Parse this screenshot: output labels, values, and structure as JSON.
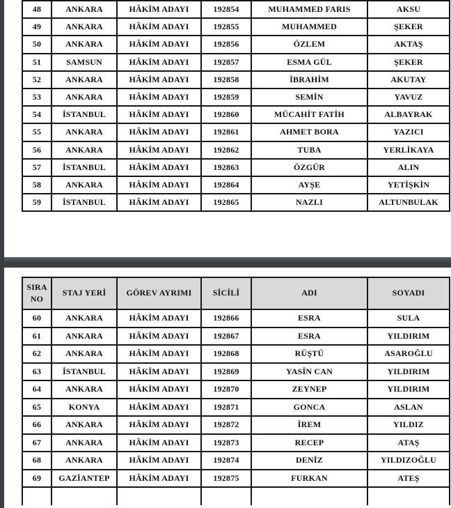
{
  "colors": {
    "page_bg": "#ffffff",
    "separator_dark": "#3a3e41",
    "separator_light": "#5a5f64",
    "header_bg": "#d9d9d9",
    "border": "#161616",
    "text": "#111111"
  },
  "column_keys": [
    "sira-no",
    "staj-yeri",
    "gorev-ayrimi",
    "sicili",
    "adi",
    "soyadi"
  ],
  "table_bottom_headers": [
    "SIRA NO",
    "STAJ YERİ",
    "GÖREV AYRIMI",
    "SİCİLİ",
    "ADI",
    "SOYADI"
  ],
  "table_top_rows": [
    [
      "48",
      "ANKARA",
      "HÂKİM ADAYI",
      "192854",
      "MUHAMMED FARIS",
      "AKSU"
    ],
    [
      "49",
      "ANKARA",
      "HÂKİM ADAYI",
      "192855",
      "MUHAMMED",
      "ŞEKER"
    ],
    [
      "50",
      "ANKARA",
      "HÂKİM ADAYI",
      "192856",
      "ÖZLEM",
      "AKTAŞ"
    ],
    [
      "51",
      "SAMSUN",
      "HÂKİM ADAYI",
      "192857",
      "ESMA GÜL",
      "ŞEKER"
    ],
    [
      "52",
      "ANKARA",
      "HÂKİM ADAYI",
      "192858",
      "İBRAHİM",
      "AKUTAY"
    ],
    [
      "53",
      "ANKARA",
      "HÂKİM ADAYI",
      "192859",
      "SEMİN",
      "YAVUZ"
    ],
    [
      "54",
      "İSTANBUL",
      "HÂKİM ADAYI",
      "192860",
      "MÜCAHİT FATİH",
      "ALBAYRAK"
    ],
    [
      "55",
      "ANKARA",
      "HÂKİM ADAYI",
      "192861",
      "AHMET BORA",
      "YAZICI"
    ],
    [
      "56",
      "ANKARA",
      "HÂKİM ADAYI",
      "192862",
      "TUBA",
      "YERLİKAYA"
    ],
    [
      "57",
      "İSTANBUL",
      "HÂKİM ADAYI",
      "192863",
      "ÖZGÜR",
      "ALIN"
    ],
    [
      "58",
      "ANKARA",
      "HÂKİM ADAYI",
      "192864",
      "AYŞE",
      "YETİŞKİN"
    ],
    [
      "59",
      "İSTANBUL",
      "HÂKİM ADAYI",
      "192865",
      "NAZLI",
      "ALTUNBULAK"
    ]
  ],
  "table_bottom_rows": [
    [
      "60",
      "ANKARA",
      "HÂKİM ADAYI",
      "192866",
      "ESRA",
      "SULA"
    ],
    [
      "61",
      "ANKARA",
      "HÂKİM ADAYI",
      "192867",
      "ESRA",
      "YILDIRIM"
    ],
    [
      "62",
      "ANKARA",
      "HÂKİM ADAYI",
      "192868",
      "RÜŞTÜ",
      "ASAROĞLU"
    ],
    [
      "63",
      "İSTANBUL",
      "HÂKİM ADAYI",
      "192869",
      "YASİN CAN",
      "YILDIRIM"
    ],
    [
      "64",
      "ANKARA",
      "HÂKİM ADAYI",
      "192870",
      "ZEYNEP",
      "YILDIRIM"
    ],
    [
      "65",
      "KONYA",
      "HÂKİM ADAYI",
      "192871",
      "GONCA",
      "ASLAN"
    ],
    [
      "66",
      "ANKARA",
      "HÂKİM ADAYI",
      "192872",
      "İREM",
      "YILDIZ"
    ],
    [
      "67",
      "ANKARA",
      "HÂKİM ADAYI",
      "192873",
      "RECEP",
      "ATAŞ"
    ],
    [
      "68",
      "ANKARA",
      "HÂKİM ADAYI",
      "192874",
      "DENİZ",
      "YILDIZOĞLU"
    ],
    [
      "69",
      "GAZİANTEP",
      "HÂKİM ADAYI",
      "192875",
      "FURKAN",
      "ATEŞ"
    ]
  ]
}
